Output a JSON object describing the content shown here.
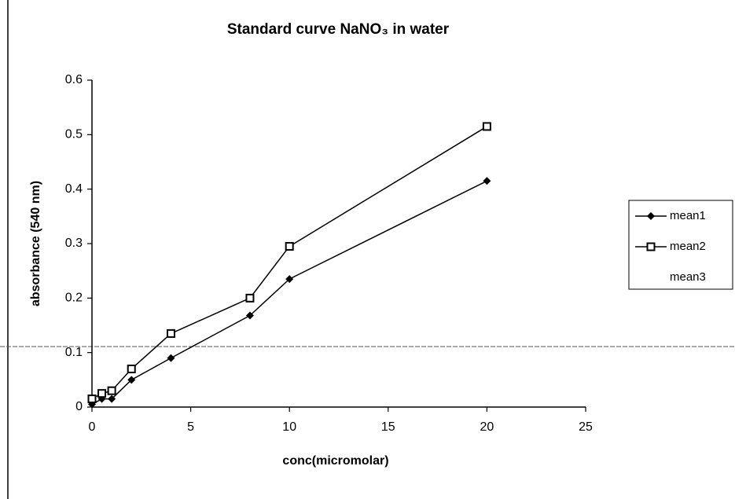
{
  "chart_data": {
    "type": "line",
    "title": "Standard curve NaNO₃ in water",
    "x_label": "conc(micromolar)",
    "y_label": "absorbance (540 nm)",
    "x": [
      0,
      0.5,
      1,
      2,
      4,
      8,
      10,
      20
    ],
    "series": [
      {
        "name": "mean1",
        "color": "#000000",
        "marker": "diamond",
        "values": [
          0.005,
          0.015,
          0.015,
          0.05,
          0.09,
          0.168,
          0.235,
          0.415
        ]
      },
      {
        "name": "mean2",
        "color": "#000000",
        "marker": "square",
        "values": [
          0.015,
          0.025,
          0.03,
          0.07,
          0.135,
          0.2,
          0.295,
          0.515
        ]
      },
      {
        "name": "mean3",
        "color": "#000000",
        "marker": "none",
        "values": [
          null,
          null,
          null,
          null,
          null,
          null,
          null,
          null
        ]
      }
    ],
    "xlim": [
      0,
      25
    ],
    "xticks": [
      0,
      5,
      10,
      15,
      20,
      25
    ],
    "ylim": [
      0,
      0.6
    ],
    "yticks": [
      0,
      0.1,
      0.2,
      0.3,
      0.4,
      0.5,
      0.6
    ],
    "grid": false,
    "legend": "right"
  }
}
